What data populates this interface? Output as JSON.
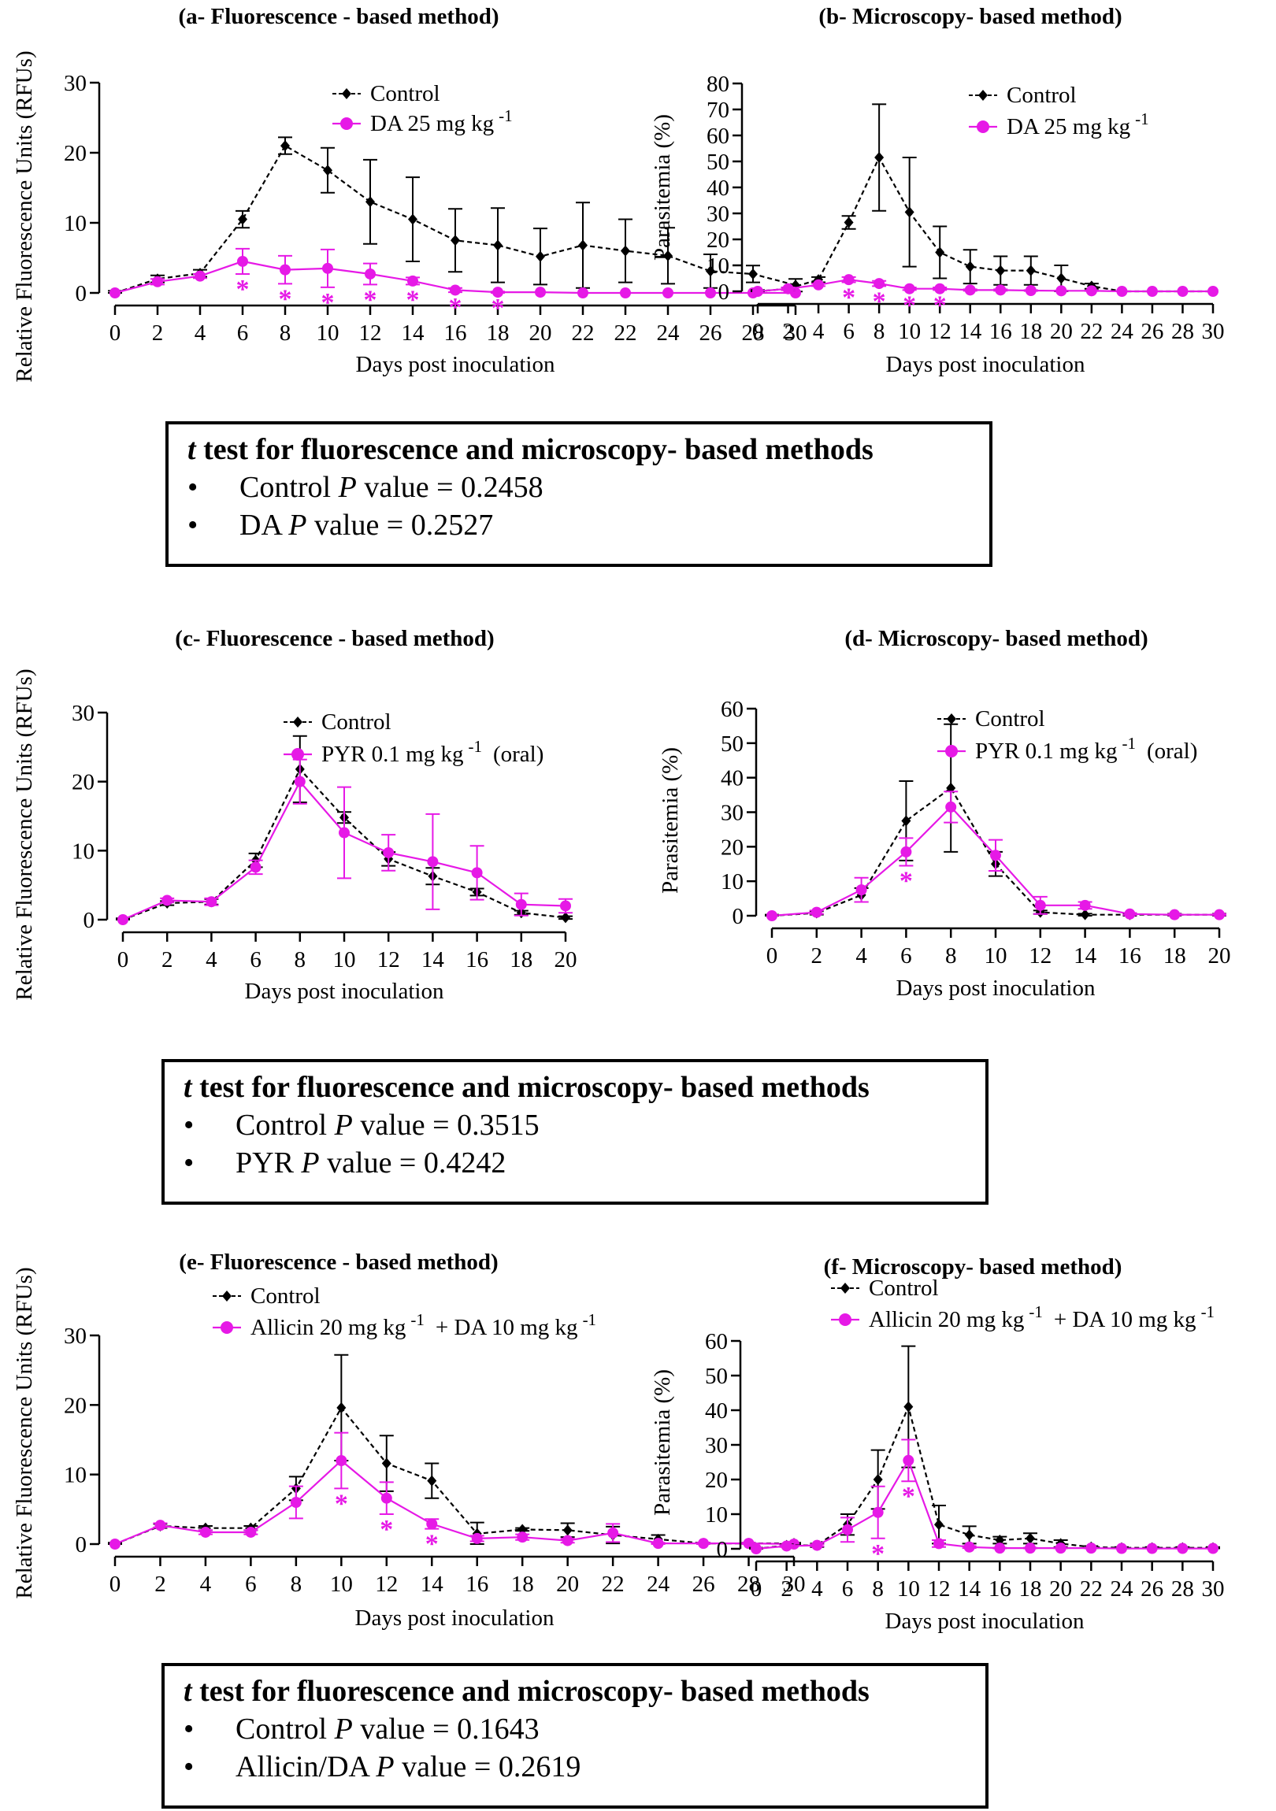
{
  "chart_data": [
    {
      "id": "a",
      "type": "line",
      "title": "(a- Fluorescence - based method)",
      "xlabel": "Days post inoculation",
      "ylabel": "Relative Fluorescence Units (RFUs)",
      "ylim": [
        0,
        30
      ],
      "yticks": [
        0,
        10,
        20,
        30
      ],
      "xticks": [
        "0",
        "2",
        "4",
        "6",
        "8",
        "10",
        "12",
        "14",
        "16",
        "18",
        "20",
        "22",
        "22",
        "24",
        "26",
        "28",
        "30"
      ],
      "legend": [
        "Control",
        "DA 25 mg kg",
        "-1"
      ],
      "series": [
        {
          "name": "Control",
          "color": "#000000",
          "values": [
            0,
            2,
            2.8,
            10.5,
            21,
            17.5,
            13,
            10.5,
            7.5,
            6.8,
            5.2,
            6.8,
            6,
            5.3,
            3.1,
            2.7,
            1.1
          ],
          "err": [
            0.3,
            0.5,
            0.5,
            1.2,
            1.2,
            3.2,
            6,
            6,
            4.5,
            5.3,
            4,
            6.1,
            4.5,
            4,
            2.4,
            1.2,
            0.9
          ]
        },
        {
          "name": "DA 25 mg kg -1",
          "color": "#e619e6",
          "values": [
            0,
            1.6,
            2.4,
            4.5,
            3.3,
            3.5,
            2.7,
            1.7,
            0.4,
            0.1,
            0.1,
            0,
            0,
            0,
            0,
            0,
            0
          ],
          "err": [
            0,
            0.4,
            0.3,
            1.8,
            2,
            2.7,
            1.5,
            0.5,
            0.3,
            0.1,
            0,
            0,
            0,
            0,
            0,
            0,
            0
          ]
        }
      ],
      "sig_index": [
        3,
        4,
        5,
        6,
        7,
        8,
        9
      ],
      "sig_label": "*"
    },
    {
      "id": "b",
      "type": "line",
      "title": "(b- Microscopy- based method)",
      "xlabel": "Days post inoculation",
      "ylabel": "Parasitemia (%)",
      "ylim": [
        0,
        80
      ],
      "yticks": [
        0,
        10,
        20,
        30,
        40,
        50,
        60,
        70,
        80
      ],
      "xticks": [
        "0",
        "2",
        "4",
        "6",
        "8",
        "10",
        "12",
        "14",
        "16",
        "18",
        "20",
        "22",
        "24",
        "26",
        "28",
        "30"
      ],
      "legend": [
        "Control",
        "DA 25 mg kg",
        "-1"
      ],
      "series": [
        {
          "name": "Control",
          "color": "#000000",
          "values": [
            0,
            1,
            4.5,
            26.5,
            51.5,
            30.5,
            15,
            9.5,
            8,
            8,
            5,
            2,
            0,
            0,
            0,
            0
          ],
          "err": [
            0.5,
            0.5,
            1,
            2.5,
            20.5,
            21,
            10,
            6.5,
            5.5,
            5.5,
            5,
            1,
            0,
            0,
            0,
            0
          ]
        },
        {
          "name": "DA 25 mg kg -1",
          "color": "#e619e6",
          "values": [
            0,
            1,
            2.5,
            4.5,
            3,
            1,
            1,
            0.5,
            0.5,
            0.3,
            0.2,
            0.2,
            0,
            0,
            0,
            0
          ],
          "err": [
            0,
            0.5,
            0.5,
            1,
            1,
            0.5,
            0.5,
            0.3,
            0.3,
            0.2,
            0.1,
            0.1,
            0,
            0,
            0,
            0
          ]
        }
      ],
      "sig_index": [
        3,
        4,
        5,
        6
      ],
      "sig_label": "*"
    },
    {
      "id": "c",
      "type": "line",
      "title": "(c- Fluorescence - based method)",
      "xlabel": "Days post inoculation",
      "ylabel": "Relative Fluorescence Units (RFUs)",
      "ylim": [
        0,
        30
      ],
      "yticks": [
        0,
        10,
        20,
        30
      ],
      "xticks": [
        "0",
        "2",
        "4",
        "6",
        "8",
        "10",
        "12",
        "14",
        "16",
        "18",
        "20"
      ],
      "legend": [
        "Control",
        "PYR 0.1 mg kg",
        "-1",
        "(oral)"
      ],
      "series": [
        {
          "name": "Control",
          "color": "#000000",
          "values": [
            0,
            2.4,
            2.6,
            8.6,
            21.8,
            14.8,
            8.8,
            6.3,
            4,
            1,
            0.3
          ],
          "err": [
            0.2,
            0.3,
            0.4,
            1,
            4.8,
            0.8,
            1,
            1.2,
            0.5,
            0.3,
            0.2
          ]
        },
        {
          "name": "PYR 0.1 mg kg -1 (oral)",
          "color": "#e619e6",
          "values": [
            0,
            2.8,
            2.6,
            7.6,
            20,
            12.6,
            9.7,
            8.4,
            6.8,
            2.2,
            2
          ],
          "err": [
            0,
            0.3,
            0.5,
            1,
            3.2,
            6.6,
            2.6,
            6.9,
            3.9,
            1.6,
            1
          ]
        }
      ],
      "sig_index": [],
      "sig_label": "*"
    },
    {
      "id": "d",
      "type": "line",
      "title": "(d- Microscopy- based method)",
      "xlabel": "Days post inoculation",
      "ylabel": "Parasitemia (%)",
      "ylim": [
        0,
        60
      ],
      "yticks": [
        0,
        10,
        20,
        30,
        40,
        50,
        60
      ],
      "xticks": [
        "0",
        "2",
        "4",
        "6",
        "8",
        "10",
        "12",
        "14",
        "16",
        "18",
        "20"
      ],
      "legend": [
        "Control",
        "PYR 0.1 mg kg",
        "-1",
        "(oral)"
      ],
      "series": [
        {
          "name": "Control",
          "color": "#000000",
          "values": [
            0,
            0.8,
            6,
            27.5,
            37,
            15,
            1,
            0.3,
            0.3,
            0.3,
            0.3
          ],
          "err": [
            0.3,
            0.5,
            2,
            11.5,
            18.5,
            3.5,
            0.5,
            0.3,
            0.3,
            0.3,
            0.3
          ]
        },
        {
          "name": "PYR 0.1 mg kg -1 (oral)",
          "color": "#e619e6",
          "values": [
            0,
            1,
            7.5,
            18.5,
            31.5,
            17.5,
            3,
            3,
            0.5,
            0.3,
            0.3
          ],
          "err": [
            0,
            0.5,
            3.5,
            4,
            4.5,
            4.5,
            2.5,
            1,
            0.3,
            0.2,
            0.2
          ]
        }
      ],
      "sig_index": [
        3
      ],
      "sig_label": "*"
    },
    {
      "id": "e",
      "type": "line",
      "title": "(e- Fluorescence - based method)",
      "xlabel": "Days post inoculation",
      "ylabel": "Relative Fluorescence Units (RFUs)",
      "ylim": [
        0,
        30
      ],
      "yticks": [
        0,
        10,
        20,
        30
      ],
      "xticks": [
        "0",
        "2",
        "4",
        "6",
        "8",
        "10",
        "12",
        "14",
        "16",
        "18",
        "20",
        "22",
        "24",
        "26",
        "28",
        "30"
      ],
      "legend": [
        "Control",
        "Allicin 20 mg kg",
        "-1",
        "+ DA 10 mg kg",
        "-1"
      ],
      "series": [
        {
          "name": "Control",
          "color": "#000000",
          "values": [
            0,
            2.6,
            2.3,
            2.3,
            8,
            19.6,
            11.6,
            9.1,
            1.5,
            2.1,
            2,
            1.3,
            0.7,
            0.1,
            0.1,
            0.1
          ],
          "err": [
            0.2,
            0.3,
            0.3,
            0.3,
            1.7,
            7.6,
            4,
            2.5,
            1.6,
            0.2,
            1,
            1.2,
            0.6,
            0.1,
            0.1,
            0.1
          ]
        },
        {
          "name": "Allicin 20 mg kg -1 + DA 10 mg kg -1",
          "color": "#e619e6",
          "values": [
            0,
            2.7,
            1.7,
            1.7,
            6,
            12,
            6.6,
            2.9,
            0.8,
            1,
            0.5,
            1.6,
            0.1,
            0.1,
            0.1,
            0
          ],
          "err": [
            0,
            0.3,
            0.3,
            0.3,
            2.3,
            4,
            2.3,
            0.7,
            0.4,
            0.4,
            0.3,
            1.3,
            0.1,
            0.1,
            0.1,
            0
          ]
        }
      ],
      "sig_index": [
        5,
        6,
        7
      ],
      "sig_label": "*"
    },
    {
      "id": "f",
      "type": "line",
      "title": "(f- Microscopy- based method)",
      "xlabel": "Days post inoculation",
      "ylabel": "Parasitemia (%)",
      "ylim": [
        0,
        60
      ],
      "yticks": [
        0,
        10,
        20,
        30,
        40,
        50,
        60
      ],
      "xticks": [
        "0",
        "2",
        "4",
        "6",
        "8",
        "10",
        "12",
        "14",
        "16",
        "18",
        "20",
        "22",
        "24",
        "26",
        "28",
        "30"
      ],
      "legend": [
        "Control",
        "Allicin 20 mg kg",
        "-1",
        "+ DA 10 mg kg",
        "-1"
      ],
      "series": [
        {
          "name": "Control",
          "color": "#000000",
          "values": [
            0,
            1,
            1,
            7,
            20,
            41,
            7,
            4,
            2.5,
            3,
            1.5,
            0.5,
            0.3,
            0.3,
            0.3,
            0.3
          ],
          "err": [
            0.3,
            0.3,
            0.5,
            3,
            8.5,
            17.5,
            5.5,
            2.5,
            1,
            1.5,
            1,
            0.3,
            0.2,
            0.2,
            0.2,
            0.2
          ]
        },
        {
          "name": "Allicin 20 mg kg -1 + DA 10 mg kg -1",
          "color": "#e619e6",
          "values": [
            0,
            0.8,
            1,
            5.5,
            10.5,
            25.5,
            1.5,
            0.5,
            0.2,
            0.2,
            0.2,
            0.2,
            0.1,
            0.1,
            0.1,
            0.1
          ],
          "err": [
            0,
            0.3,
            0.3,
            3.5,
            7.5,
            6,
            1,
            0.3,
            0.1,
            0.1,
            0.1,
            0.1,
            0,
            0,
            0,
            0
          ]
        }
      ],
      "sig_index": [
        4,
        5
      ],
      "sig_label": "*"
    }
  ],
  "ttests": [
    {
      "title_italic": "t",
      "title_rest": " test for fluorescence and microscopy- based methods",
      "line1_pre": "Control ",
      "line1_italic": "P",
      "line1_post": " value = 0.2458",
      "line2_pre": "DA ",
      "line2_italic": "P",
      "line2_post": " value = 0.2527"
    },
    {
      "title_italic": "t",
      "title_rest": " test for fluorescence and microscopy- based methods",
      "line1_pre": "Control ",
      "line1_italic": "P",
      "line1_post": " value = 0.3515",
      "line2_pre": "PYR ",
      "line2_italic": "P",
      "line2_post": " value = 0.4242"
    },
    {
      "title_italic": "t",
      "title_rest": " test for fluorescence and microscopy- based methods",
      "line1_pre": "Control ",
      "line1_italic": "P",
      "line1_post": " value = 0.1643",
      "line2_pre": "Allicin/DA ",
      "line2_italic": "P",
      "line2_post": " value = 0.2619"
    }
  ],
  "bullet_symbol": "•",
  "colors": {
    "control": "#000000",
    "treatment": "#e619e6"
  }
}
